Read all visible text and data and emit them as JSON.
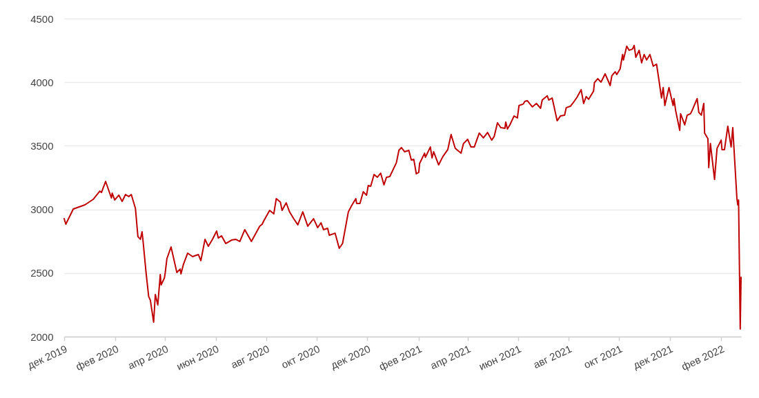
{
  "chart_data": {
    "type": "line",
    "xlim": [
      "2019-12-01",
      "2022-02-25"
    ],
    "ylim": [
      2000,
      4500
    ],
    "yticks": [
      2000,
      2500,
      3000,
      3500,
      4000,
      4500
    ],
    "xticks": [
      {
        "value": "2019-12-01",
        "label": "дек 2019"
      },
      {
        "value": "2020-02-01",
        "label": "фев 2020"
      },
      {
        "value": "2020-04-01",
        "label": "апр 2020"
      },
      {
        "value": "2020-06-01",
        "label": "июн 2020"
      },
      {
        "value": "2020-08-01",
        "label": "авг 2020"
      },
      {
        "value": "2020-10-01",
        "label": "окт 2020"
      },
      {
        "value": "2020-12-01",
        "label": "дек 2020"
      },
      {
        "value": "2021-02-01",
        "label": "фев 2021"
      },
      {
        "value": "2021-04-01",
        "label": "апр 2021"
      },
      {
        "value": "2021-06-01",
        "label": "июн 2021"
      },
      {
        "value": "2021-08-01",
        "label": "авг 2021"
      },
      {
        "value": "2021-10-01",
        "label": "окт 2021"
      },
      {
        "value": "2021-12-01",
        "label": "дек 2021"
      },
      {
        "value": "2022-02-01",
        "label": "фев 2022"
      }
    ],
    "grid": "y",
    "marker": "none",
    "line_style": "solid",
    "x": [
      "2019-12-01",
      "2019-12-03",
      "2019-12-12",
      "2019-12-26",
      "2020-01-05",
      "2020-01-13",
      "2020-01-15",
      "2020-01-20",
      "2020-01-27",
      "2020-01-28",
      "2020-01-31",
      "2020-02-05",
      "2020-02-09",
      "2020-02-13",
      "2020-02-17",
      "2020-02-20",
      "2020-02-25",
      "2020-02-28",
      "2020-03-02",
      "2020-03-04",
      "2020-03-05",
      "2020-03-09",
      "2020-03-12",
      "2020-03-14",
      "2020-03-18",
      "2020-03-20",
      "2020-03-23",
      "2020-03-26",
      "2020-03-27",
      "2020-03-31",
      "2020-04-01",
      "2020-04-03",
      "2020-04-08",
      "2020-04-15",
      "2020-04-19",
      "2020-04-20",
      "2020-04-23",
      "2020-04-28",
      "2020-05-04",
      "2020-05-11",
      "2020-05-14",
      "2020-05-19",
      "2020-05-23",
      "2020-05-28",
      "2020-06-02",
      "2020-06-04",
      "2020-06-08",
      "2020-06-13",
      "2020-06-20",
      "2020-06-25",
      "2020-06-30",
      "2020-07-06",
      "2020-07-14",
      "2020-07-24",
      "2020-07-27",
      "2020-07-29",
      "2020-08-05",
      "2020-08-10",
      "2020-08-13",
      "2020-08-18",
      "2020-08-20",
      "2020-08-25",
      "2020-08-29",
      "2020-09-03",
      "2020-09-08",
      "2020-09-14",
      "2020-09-20",
      "2020-09-27",
      "2020-10-02",
      "2020-10-06",
      "2020-10-09",
      "2020-10-14",
      "2020-10-16",
      "2020-10-23",
      "2020-10-28",
      "2020-11-01",
      "2020-11-08",
      "2020-11-12",
      "2020-11-17",
      "2020-11-18",
      "2020-11-22",
      "2020-11-26",
      "2020-11-30",
      "2020-12-02",
      "2020-12-05",
      "2020-12-09",
      "2020-12-13",
      "2020-12-17",
      "2020-12-21",
      "2020-12-24",
      "2020-12-28",
      "2021-01-05",
      "2021-01-08",
      "2021-01-11",
      "2021-01-15",
      "2021-01-20",
      "2021-01-23",
      "2021-01-26",
      "2021-01-29",
      "2021-02-01",
      "2021-02-02",
      "2021-02-08",
      "2021-02-09",
      "2021-02-15",
      "2021-02-17",
      "2021-02-19",
      "2021-02-25",
      "2021-03-02",
      "2021-03-08",
      "2021-03-12",
      "2021-03-17",
      "2021-03-24",
      "2021-03-27",
      "2021-04-01",
      "2021-04-05",
      "2021-04-09",
      "2021-04-15",
      "2021-04-20",
      "2021-04-25",
      "2021-04-30",
      "2021-05-03",
      "2021-05-07",
      "2021-05-11",
      "2021-05-16",
      "2021-05-17",
      "2021-05-19",
      "2021-05-22",
      "2021-05-27",
      "2021-05-31",
      "2021-06-02",
      "2021-06-07",
      "2021-06-09",
      "2021-06-12",
      "2021-06-18",
      "2021-06-23",
      "2021-06-28",
      "2021-06-30",
      "2021-07-06",
      "2021-07-08",
      "2021-07-12",
      "2021-07-18",
      "2021-07-22",
      "2021-07-27",
      "2021-07-29",
      "2021-08-03",
      "2021-08-07",
      "2021-08-11",
      "2021-08-16",
      "2021-08-19",
      "2021-08-22",
      "2021-08-25",
      "2021-08-31",
      "2021-09-01",
      "2021-09-05",
      "2021-09-09",
      "2021-09-14",
      "2021-09-20",
      "2021-09-22",
      "2021-09-26",
      "2021-09-28",
      "2021-10-02",
      "2021-10-05",
      "2021-10-06",
      "2021-10-10",
      "2021-10-13",
      "2021-10-17",
      "2021-10-19",
      "2021-10-21",
      "2021-10-25",
      "2021-10-28",
      "2021-10-31",
      "2021-11-03",
      "2021-11-07",
      "2021-11-11",
      "2021-11-15",
      "2021-11-18",
      "2021-11-21",
      "2021-11-23",
      "2021-11-25",
      "2021-11-30",
      "2021-12-05",
      "2021-12-06",
      "2021-12-08",
      "2021-12-13",
      "2021-12-14",
      "2021-12-19",
      "2021-12-22",
      "2021-12-26",
      "2021-12-28",
      "2022-01-03",
      "2022-01-05",
      "2022-01-08",
      "2022-01-11",
      "2022-01-12",
      "2022-01-16",
      "2022-01-17",
      "2022-01-19",
      "2022-01-24",
      "2022-01-27",
      "2022-02-01",
      "2022-02-02",
      "2022-02-05",
      "2022-02-09",
      "2022-02-13",
      "2022-02-15",
      "2022-02-20",
      "2022-02-21",
      "2022-02-22",
      "2022-02-24",
      "2022-02-25"
    ],
    "series": [
      {
        "color": "#c00000",
        "values": [
          2927,
          2884,
          3003,
          3036,
          3079,
          3144,
          3133,
          3220,
          3090,
          3128,
          3074,
          3112,
          3063,
          3117,
          3101,
          3117,
          3009,
          2786,
          2765,
          2824,
          2765,
          2493,
          2315,
          2287,
          2114,
          2331,
          2249,
          2488,
          2407,
          2461,
          2504,
          2613,
          2705,
          2504,
          2531,
          2493,
          2569,
          2656,
          2629,
          2645,
          2597,
          2765,
          2710,
          2765,
          2830,
          2775,
          2792,
          2732,
          2759,
          2765,
          2748,
          2841,
          2748,
          2868,
          2884,
          2911,
          2992,
          2965,
          3085,
          3057,
          2992,
          3052,
          2981,
          2927,
          2879,
          2981,
          2868,
          2927,
          2857,
          2895,
          2841,
          2851,
          2797,
          2813,
          2694,
          2732,
          2981,
          3030,
          3085,
          3047,
          3047,
          3139,
          3112,
          3188,
          3182,
          3274,
          3253,
          3285,
          3193,
          3253,
          3258,
          3367,
          3464,
          3486,
          3453,
          3464,
          3388,
          3394,
          3280,
          3291,
          3361,
          3442,
          3410,
          3491,
          3405,
          3453,
          3350,
          3415,
          3470,
          3589,
          3480,
          3442,
          3518,
          3551,
          3491,
          3491,
          3600,
          3562,
          3605,
          3545,
          3573,
          3681,
          3643,
          3638,
          3687,
          3632,
          3665,
          3735,
          3719,
          3817,
          3828,
          3849,
          3855,
          3806,
          3833,
          3795,
          3860,
          3893,
          3860,
          3876,
          3697,
          3735,
          3741,
          3800,
          3811,
          3844,
          3882,
          3941,
          3833,
          3887,
          3866,
          3931,
          3996,
          4028,
          4001,
          4066,
          3974,
          4050,
          4082,
          4061,
          4104,
          4218,
          4175,
          4283,
          4251,
          4261,
          4289,
          4196,
          4251,
          4153,
          4218,
          4175,
          4218,
          4126,
          4142,
          4012,
          3876,
          3958,
          3817,
          3958,
          3817,
          3871,
          3779,
          3621,
          3752,
          3665,
          3741,
          3752,
          3779,
          3871,
          3763,
          3741,
          3833,
          3600,
          3556,
          3329,
          3518,
          3236,
          3480,
          3545,
          3470,
          3470,
          3654,
          3491,
          3643,
          3085,
          3036,
          3074,
          2060,
          2466
        ]
      }
    ]
  }
}
